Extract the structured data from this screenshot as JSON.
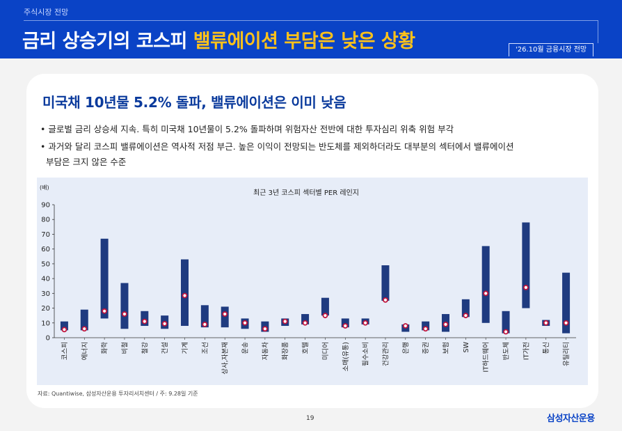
{
  "header": {
    "section": "주식시장 전망",
    "title_main": "금리 상승기의 코스피 ",
    "title_highlight": "밸류에이션 부담은 낮은 상황",
    "edition": "'26.10월 금융시장 전망"
  },
  "content": {
    "heading": "미국채 10년물 5.2% 돌파, 밸류에이션은 이미 낮음",
    "bullets": [
      "• 글로벌 금리 상승세 지속. 특히 미국채 10년물이 5.2% 돌파하며 위험자산 전반에 대한 투자심리 위축 위험 부각",
      "• 과거와 달리 코스피 밸류에이션은 역사적 저점 부근. 높은 이익이 전망되는 반도체를 제외하더라도 대부분의 섹터에서 밸류에이션",
      "부담은 크지 않은 수준"
    ]
  },
  "chart_data": {
    "type": "range-bar",
    "title": "최근 3년 코스피 섹터별 PER 레인지",
    "unit_label": "(배)",
    "ylim": [
      0,
      90
    ],
    "yticks": [
      0,
      10,
      20,
      30,
      40,
      50,
      60,
      70,
      80,
      90
    ],
    "categories": [
      "코스피",
      "에너지",
      "화학",
      "비철",
      "철강",
      "건설",
      "기계",
      "조선",
      "상사,자본재",
      "운송",
      "자동차",
      "화장품",
      "호텔",
      "미디어",
      "소매(유통)",
      "필수소비",
      "건강관리",
      "은행",
      "증권",
      "보험",
      "SW",
      "IT하드웨어",
      "반도체",
      "IT가전",
      "통신",
      "유틸리티"
    ],
    "series": [
      {
        "name": "range_low",
        "values": [
          5,
          5,
          13,
          6,
          8,
          6,
          8,
          7,
          7,
          6,
          4,
          8,
          9,
          15,
          7,
          9,
          25,
          4,
          5,
          4,
          14,
          10,
          3,
          20,
          8,
          3
        ]
      },
      {
        "name": "range_high",
        "values": [
          11,
          19,
          67,
          37,
          18,
          15,
          53,
          22,
          21,
          13,
          11,
          13,
          16,
          27,
          13,
          13,
          49,
          9,
          11,
          16,
          26,
          62,
          18,
          78,
          12,
          44
        ]
      },
      {
        "name": "current",
        "values": [
          5.5,
          6,
          18,
          16,
          11,
          9.5,
          28.5,
          9,
          16,
          10,
          6,
          11,
          10,
          15,
          8,
          10,
          25.5,
          8,
          6,
          9,
          15,
          30,
          4,
          34,
          10,
          10
        ]
      }
    ],
    "colors": {
      "bar": "#1f3b80",
      "marker_fill": "#ffffff",
      "marker_stroke": "#c0143c"
    },
    "grid": false
  },
  "footer": {
    "source": "자료: Quantiwise, 삼성자산운용 투자리서치센터 / 주: 9.28일 기준",
    "page": "19",
    "logo": "삼성자산운용"
  }
}
